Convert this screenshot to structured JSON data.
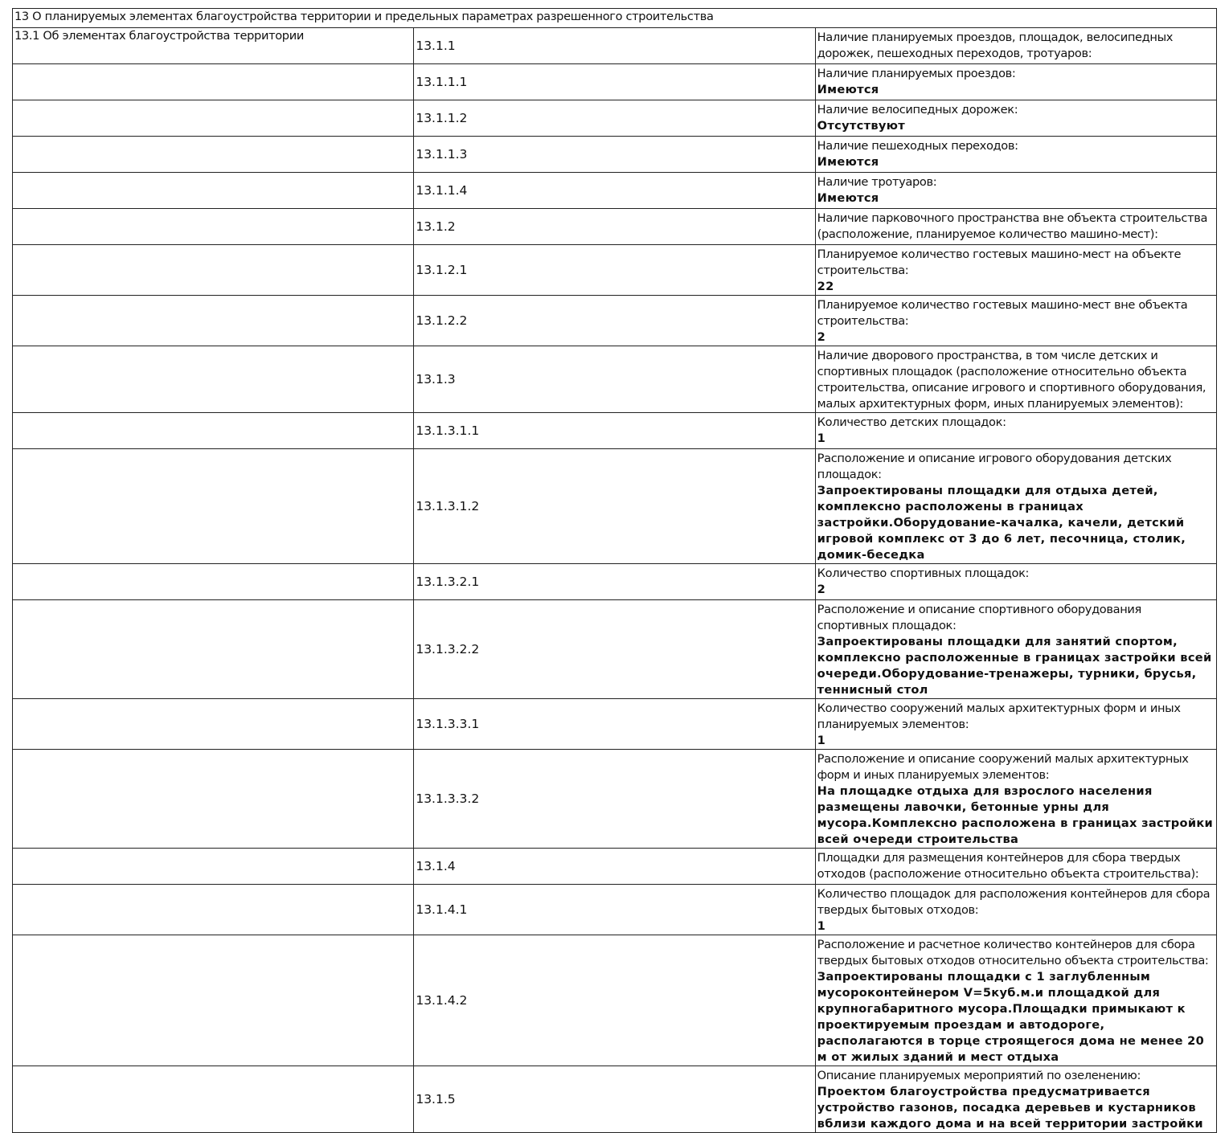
{
  "section_title": "13 О планируемых элементах благоустройства территории и предельных параметрах разрешенного строительства",
  "subsection_title": "13.1 Об элементах благоустройства территории",
  "rows": [
    {
      "num": "13.1.1",
      "label": "Наличие планируемых проездов, площадок, велосипедных дорожек, пешеходных переходов, тротуаров:",
      "value": ""
    },
    {
      "num": "13.1.1.1",
      "label": "Наличие планируемых проездов:",
      "value": "Имеются"
    },
    {
      "num": "13.1.1.2",
      "label": "Наличие велосипедных дорожек:",
      "value": "Отсутствуют"
    },
    {
      "num": "13.1.1.3",
      "label": "Наличие пешеходных переходов:",
      "value": "Имеются"
    },
    {
      "num": "13.1.1.4",
      "label": "Наличие тротуаров:",
      "value": "Имеются"
    },
    {
      "num": "13.1.2",
      "label": "Наличие парковочного пространства вне объекта строительства (расположение, планируемое количество машино-мест):",
      "value": ""
    },
    {
      "num": "13.1.2.1",
      "label": "Планируемое количество гостевых машино-мест на объекте строительства:",
      "value": "22"
    },
    {
      "num": "13.1.2.2",
      "label": "Планируемое количество гостевых машино-мест вне объекта строительства:",
      "value": "2"
    },
    {
      "num": "13.1.3",
      "label": "Наличие дворового пространства, в том числе детских и спортивных площадок (расположение относительно объекта строительства, описание игрового и спортивного оборудования, малых архитектурных форм, иных планируемых элементов):",
      "value": ""
    },
    {
      "num": "13.1.3.1.1",
      "label": "Количество детских площадок:",
      "value": "1"
    },
    {
      "num": "13.1.3.1.2",
      "label": "Расположение и описание игрового оборудования детских площадок:",
      "value": "Запроектированы площадки для отдыха детей, комплексно расположены в границах застройки.Оборудование-качалка, качели, детский игровой комплекс от 3 до 6 лет, песочница, столик, домик-беседка"
    },
    {
      "num": "13.1.3.2.1",
      "label": "Количество спортивных площадок:",
      "value": "2"
    },
    {
      "num": "13.1.3.2.2",
      "label": "Расположение и описание спортивного оборудования спортивных площадок:",
      "value": "Запроектированы площадки для занятий спортом, комплексно расположенные в границах застройки всей очереди.Оборудование-тренажеры, турники, брусья, теннисный стол"
    },
    {
      "num": "13.1.3.3.1",
      "label": "Количество сооружений малых архитектурных форм и иных планируемых элементов:",
      "value": "1"
    },
    {
      "num": "13.1.3.3.2",
      "label": "Расположение и описание сооружений малых архитектурных форм и иных планируемых элементов:",
      "value": "На площадке отдыха для взрослого населения размещены лавочки, бетонные урны для мусора.Комплексно расположена в границах застройки всей очереди строительства"
    },
    {
      "num": "13.1.4",
      "label": "Площадки для размещения контейнеров для сбора твердых отходов (расположение относительно объекта строительства):",
      "value": ""
    },
    {
      "num": "13.1.4.1",
      "label": "Количество площадок для расположения контейнеров для сбора твердых бытовых отходов:",
      "value": "1"
    },
    {
      "num": "13.1.4.2",
      "label": "Расположение и расчетное количество контейнеров для сбора твердых бытовых отходов относительно объекта строительства:",
      "value": "Запроектированы площадки с 1 заглубленным мусороконтейнером V=5куб.м.и площадкой для крупногабаритного мусора.Площадки примыкают к проектируемым проездам и автодороге, располагаются в торце строящегося дома не менее 20 м от жилых зданий и мест отдыха"
    },
    {
      "num": "13.1.5",
      "label": "Описание планируемых мероприятий по озеленению:",
      "value": "Проектом благоустройства предусматривается устройство газонов, посадка деревьев и кустарников вблизи каждого дома и на всей территории застройки"
    }
  ]
}
